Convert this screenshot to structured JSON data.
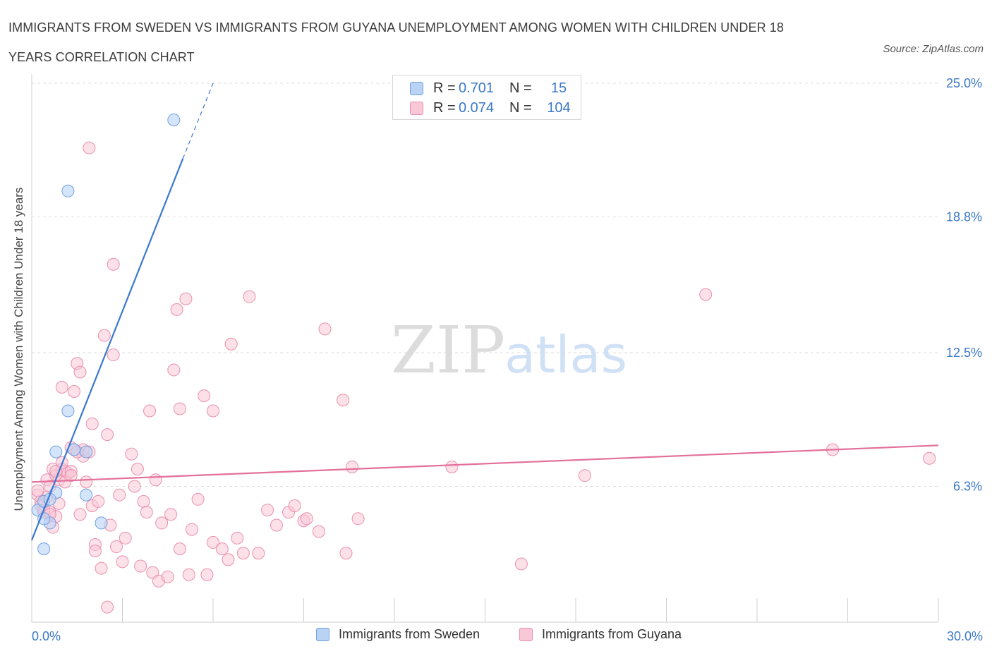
{
  "header": {
    "title": "IMMIGRANTS FROM SWEDEN VS IMMIGRANTS FROM GUYANA UNEMPLOYMENT AMONG WOMEN WITH CHILDREN UNDER 18 YEARS CORRELATION CHART",
    "source": "Source: ZipAtlas.com"
  },
  "watermark": {
    "zip": "ZIP",
    "atlas": "atlas"
  },
  "colors": {
    "sweden_fill": "#b9d3f5",
    "sweden_stroke": "#6f9fe0",
    "sweden_line": "#3b78d0",
    "guyana_fill": "#f9c8d7",
    "guyana_stroke": "#ea8fae",
    "guyana_line": "#e2709a",
    "value_text": "#3b78c8"
  },
  "legend_top": {
    "rows": [
      {
        "r_label": "R =",
        "r_value": "0.701",
        "n_label": "N =",
        "n_value": "15"
      },
      {
        "r_label": "R =",
        "r_value": "0.074",
        "n_label": "N =",
        "n_value": "104"
      }
    ]
  },
  "legend_bottom": [
    {
      "label": "Immigrants from Sweden"
    },
    {
      "label": "Immigrants from Guyana"
    }
  ],
  "chart_data": {
    "type": "scatter",
    "title": "IMMIGRANTS FROM SWEDEN VS IMMIGRANTS FROM GUYANA UNEMPLOYMENT AMONG WOMEN WITH CHILDREN UNDER 18 YEARS CORRELATION CHART",
    "xlabel": "",
    "ylabel": "Unemployment Among Women with Children Under 18 years",
    "xlim": [
      0,
      30
    ],
    "ylim": [
      0,
      25
    ],
    "x_tick_labels": [
      "0.0%",
      "30.0%"
    ],
    "y_tick_labels": [
      "25.0%",
      "18.8%",
      "12.5%",
      "6.3%"
    ],
    "y_ticks": [
      25.0,
      18.8,
      12.5,
      6.3
    ],
    "grid": true,
    "series": [
      {
        "name": "Immigrants from Sweden",
        "r": 0.701,
        "n": 15,
        "trend": {
          "x": [
            0.0,
            5.0
          ],
          "y": [
            3.8,
            21.5
          ],
          "dashed_to": [
            6.0,
            25.0
          ]
        },
        "points": [
          [
            0.2,
            5.2
          ],
          [
            0.4,
            5.6
          ],
          [
            0.6,
            4.6
          ],
          [
            0.8,
            6.0
          ],
          [
            0.6,
            5.7
          ],
          [
            0.8,
            7.9
          ],
          [
            1.2,
            20.0
          ],
          [
            1.2,
            9.8
          ],
          [
            1.4,
            8.0
          ],
          [
            1.8,
            5.9
          ],
          [
            1.8,
            7.9
          ],
          [
            2.3,
            4.6
          ],
          [
            0.4,
            4.8
          ],
          [
            0.4,
            3.4
          ],
          [
            4.7,
            23.3
          ]
        ]
      },
      {
        "name": "Immigrants from Guyana",
        "r": 0.074,
        "n": 104,
        "trend": {
          "x": [
            0.0,
            30.0
          ],
          "y": [
            6.5,
            8.2
          ]
        },
        "points": [
          [
            0.2,
            5.9
          ],
          [
            0.3,
            5.6
          ],
          [
            0.3,
            5.4
          ],
          [
            0.4,
            5.1
          ],
          [
            0.5,
            5.8
          ],
          [
            0.5,
            6.6
          ],
          [
            0.6,
            6.3
          ],
          [
            0.6,
            5.1
          ],
          [
            0.7,
            7.1
          ],
          [
            0.8,
            6.8
          ],
          [
            0.8,
            4.9
          ],
          [
            0.7,
            4.4
          ],
          [
            0.9,
            5.5
          ],
          [
            0.9,
            6.6
          ],
          [
            1.0,
            7.1
          ],
          [
            1.0,
            10.9
          ],
          [
            1.0,
            7.4
          ],
          [
            1.1,
            7.0
          ],
          [
            1.2,
            6.9
          ],
          [
            1.3,
            7.0
          ],
          [
            1.3,
            8.1
          ],
          [
            1.4,
            8.0
          ],
          [
            1.4,
            10.7
          ],
          [
            1.5,
            12.0
          ],
          [
            1.6,
            11.6
          ],
          [
            1.7,
            7.7
          ],
          [
            1.7,
            8.0
          ],
          [
            1.8,
            6.5
          ],
          [
            1.9,
            22.0
          ],
          [
            1.9,
            7.9
          ],
          [
            2.0,
            9.2
          ],
          [
            2.0,
            5.4
          ],
          [
            2.1,
            3.6
          ],
          [
            2.1,
            3.3
          ],
          [
            2.2,
            5.6
          ],
          [
            2.3,
            2.5
          ],
          [
            2.4,
            13.3
          ],
          [
            2.5,
            0.7
          ],
          [
            2.5,
            8.7
          ],
          [
            2.6,
            4.5
          ],
          [
            2.7,
            12.4
          ],
          [
            2.7,
            16.6
          ],
          [
            2.8,
            3.5
          ],
          [
            2.9,
            5.9
          ],
          [
            3.0,
            2.8
          ],
          [
            3.1,
            3.9
          ],
          [
            3.3,
            7.8
          ],
          [
            3.4,
            6.3
          ],
          [
            3.5,
            7.1
          ],
          [
            3.6,
            2.6
          ],
          [
            3.7,
            5.6
          ],
          [
            3.8,
            5.1
          ],
          [
            3.9,
            9.8
          ],
          [
            4.0,
            2.3
          ],
          [
            4.2,
            1.9
          ],
          [
            4.1,
            6.6
          ],
          [
            4.3,
            4.6
          ],
          [
            4.5,
            2.1
          ],
          [
            4.6,
            5.0
          ],
          [
            4.7,
            11.7
          ],
          [
            4.8,
            14.5
          ],
          [
            4.9,
            3.4
          ],
          [
            4.9,
            9.9
          ],
          [
            5.1,
            15.0
          ],
          [
            5.2,
            2.2
          ],
          [
            5.3,
            4.3
          ],
          [
            5.5,
            5.7
          ],
          [
            5.7,
            10.5
          ],
          [
            5.8,
            2.2
          ],
          [
            6.0,
            3.7
          ],
          [
            6.0,
            9.8
          ],
          [
            6.3,
            3.4
          ],
          [
            6.5,
            2.9
          ],
          [
            6.6,
            12.9
          ],
          [
            6.8,
            3.9
          ],
          [
            7.0,
            3.2
          ],
          [
            7.2,
            15.1
          ],
          [
            7.5,
            3.2
          ],
          [
            7.8,
            5.2
          ],
          [
            8.1,
            4.5
          ],
          [
            8.5,
            5.1
          ],
          [
            8.7,
            5.4
          ],
          [
            9.0,
            4.7
          ],
          [
            9.1,
            4.8
          ],
          [
            9.5,
            4.2
          ],
          [
            9.7,
            13.6
          ],
          [
            10.3,
            10.3
          ],
          [
            10.4,
            3.2
          ],
          [
            10.6,
            7.2
          ],
          [
            10.8,
            4.8
          ],
          [
            13.9,
            7.2
          ],
          [
            16.2,
            2.7
          ],
          [
            18.3,
            6.8
          ],
          [
            22.3,
            15.2
          ],
          [
            26.5,
            8.0
          ],
          [
            29.7,
            7.6
          ],
          [
            0.2,
            6.1
          ],
          [
            0.4,
            5.2
          ],
          [
            0.6,
            5.0
          ],
          [
            0.8,
            7.0
          ],
          [
            1.1,
            6.5
          ],
          [
            1.3,
            6.8
          ],
          [
            1.5,
            7.9
          ],
          [
            1.6,
            5.0
          ]
        ]
      }
    ]
  }
}
